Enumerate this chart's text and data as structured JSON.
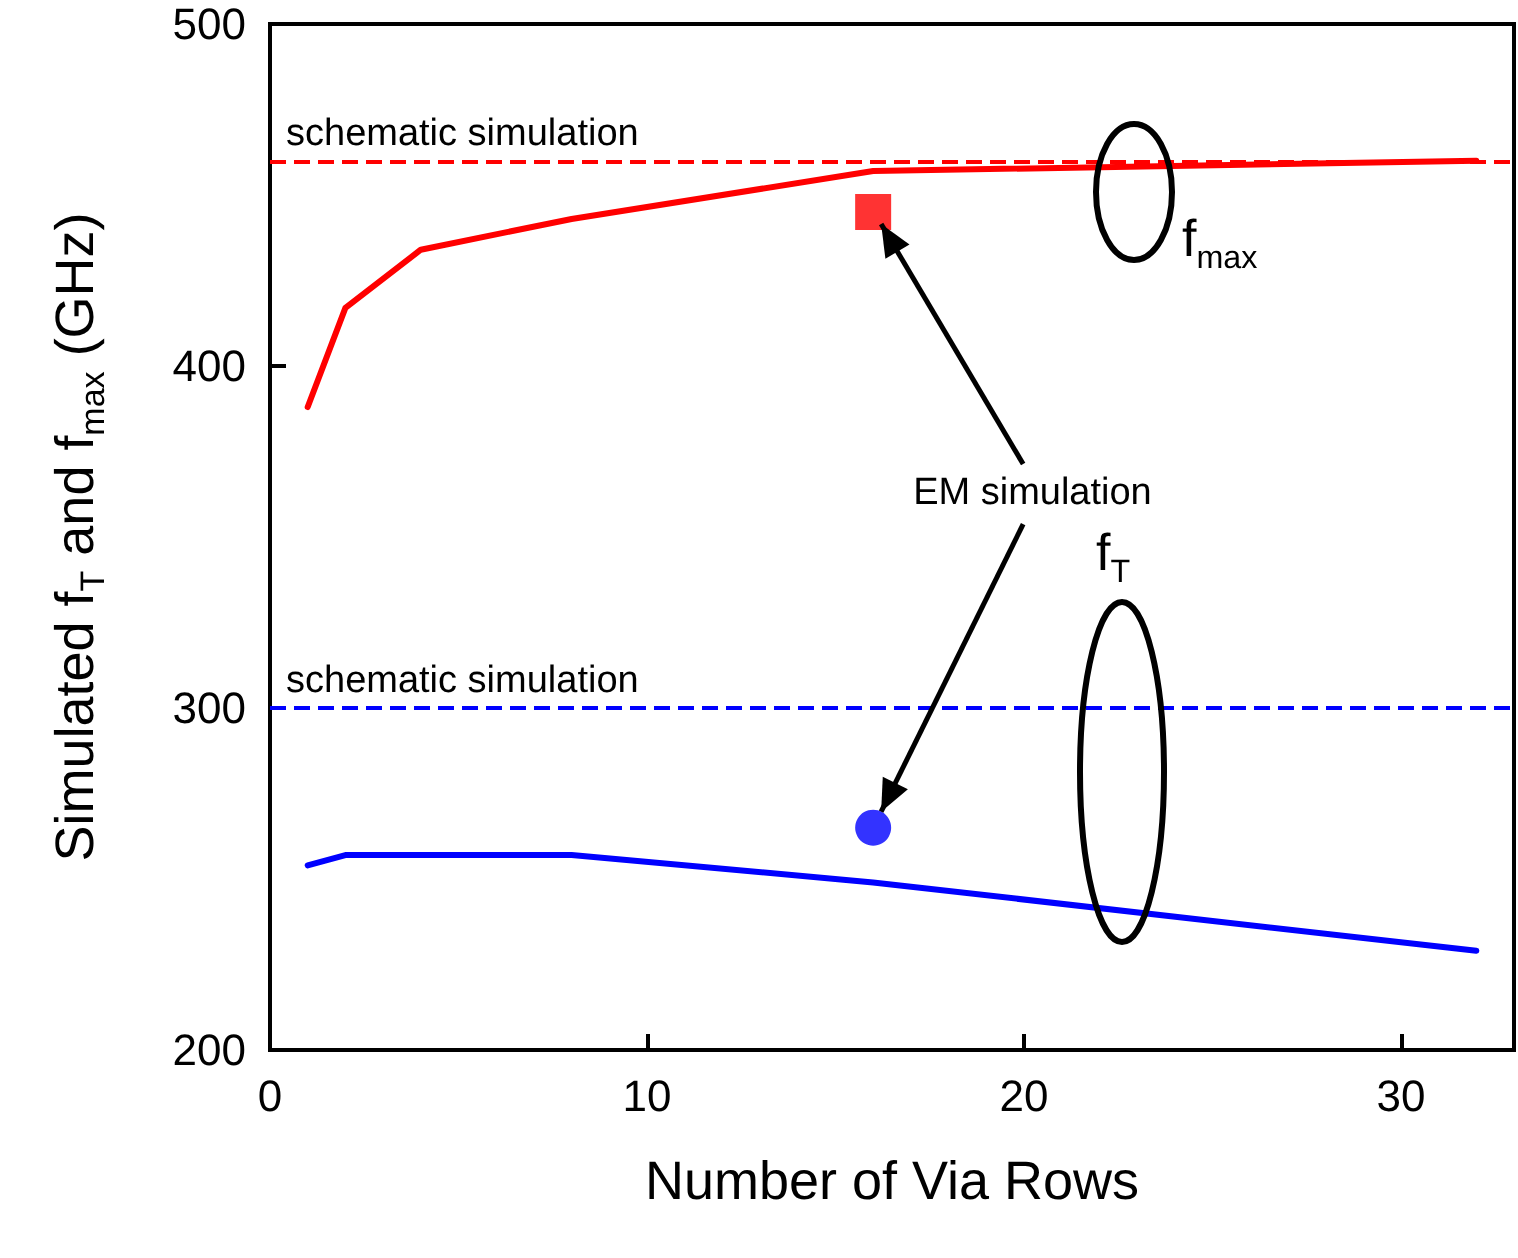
{
  "chart_data": {
    "type": "line",
    "xlabel": "Number of Via Rows",
    "ylabel": "Simulated f$_{T}$ and f$_{max}$ (GHz)",
    "xlim": [
      0,
      33
    ],
    "xticks": [
      0,
      10,
      20,
      30
    ],
    "ylim": [
      200,
      500
    ],
    "yticks": [
      200,
      300,
      400,
      500
    ],
    "grid": false,
    "series": [
      {
        "color": "#ff0000",
        "marker": "none",
        "x": [
          1,
          2,
          4,
          8,
          16,
          32
        ],
        "values": [
          388,
          417,
          434,
          443,
          457,
          460
        ]
      },
      {
        "color": "#0000ff",
        "marker": "none",
        "x": [
          1,
          2,
          4,
          8,
          16,
          32
        ],
        "values": [
          254,
          257,
          257,
          257,
          249,
          229
        ]
      },
      {
        "type": "scatter",
        "color": "#ff0000",
        "marker": "square",
        "x": [
          16
        ],
        "values": [
          445
        ]
      },
      {
        "type": "scatter",
        "color": "#0000ff",
        "marker": "circle",
        "x": [
          16
        ],
        "values": [
          265
        ]
      }
    ],
    "ref_lines": [
      {
        "axis": "y",
        "value": 460,
        "label": "schematic simulation",
        "color": "#ff0000",
        "line_style": "dashed"
      },
      {
        "axis": "y",
        "value": 300,
        "label": "schematic simulation",
        "color": "#0000ff",
        "line_style": "dashed"
      }
    ],
    "annotations": [
      "f$_{max}$",
      "f$_{T}$",
      {
        "text": "EM simulation",
        "x": 16,
        "y": 445
      }
    ]
  }
}
